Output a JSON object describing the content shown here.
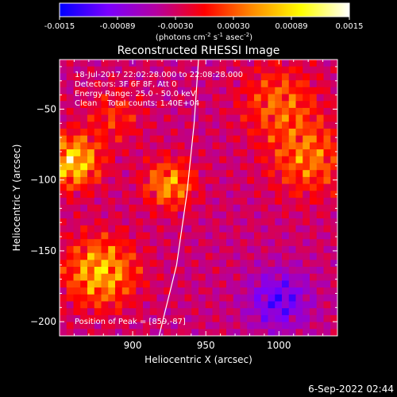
{
  "chart_data": {
    "type": "heatmap",
    "title": "Reconstructed RHESSI Image",
    "xlabel": "Heliocentric X (arcsec)",
    "ylabel": "Heliocentric Y (arcsec)",
    "xlim": [
      850,
      1040
    ],
    "ylim": [
      -210,
      -15
    ],
    "x_ticks": [
      900,
      950,
      1000
    ],
    "y_ticks": [
      -50,
      -100,
      -150,
      -200
    ],
    "colorbar": {
      "ticks": [
        "-0.0015",
        "-0.00089",
        "-0.00030",
        "0.00030",
        "0.00089",
        "0.0015"
      ],
      "range": [
        -0.0015,
        0.0015
      ],
      "unit_label": "(photons cm",
      "unit_parts": [
        "(photons cm",
        "-2",
        " s",
        "-1",
        " asec",
        "-2",
        ")"
      ],
      "colors": [
        "#0000ff",
        "#7a00ff",
        "#b400a0",
        "#ff0000",
        "#ff8c00",
        "#ffff00",
        "#ffffff"
      ]
    },
    "info_lines": [
      "18-Jul-2017 22:02:28.000 to 22:08:28.000",
      "Detectors: 3F 6F 8F, Att 0",
      "Energy Range: 25.0 - 50.0 keV",
      "Clean    Total counts: 1.40E+04"
    ],
    "peak_label": "Position of Peak = [859,-87]",
    "peak": {
      "x": 859,
      "y": -87
    },
    "limb": [
      [
        918,
        -210
      ],
      [
        930,
        -160
      ],
      [
        937,
        -110
      ],
      [
        942,
        -60
      ],
      [
        945,
        -15
      ]
    ],
    "sources": [
      {
        "x": 859,
        "y": -87,
        "amp": 0.0015,
        "sigma": 13
      },
      {
        "x": 878,
        "y": -165,
        "amp": 0.0013,
        "sigma": 17
      },
      {
        "x": 925,
        "y": -103,
        "amp": 0.0011,
        "sigma": 12
      },
      {
        "x": 888,
        "y": -55,
        "amp": 0.00055,
        "sigma": 13
      },
      {
        "x": 1000,
        "y": -45,
        "amp": 0.0008,
        "sigma": 18
      },
      {
        "x": 1020,
        "y": -85,
        "amp": 0.0009,
        "sigma": 18
      },
      {
        "x": 1000,
        "y": -185,
        "amp": -0.0009,
        "sigma": 15
      }
    ]
  },
  "footer": {
    "timestamp": "6-Sep-2022 02:44"
  }
}
